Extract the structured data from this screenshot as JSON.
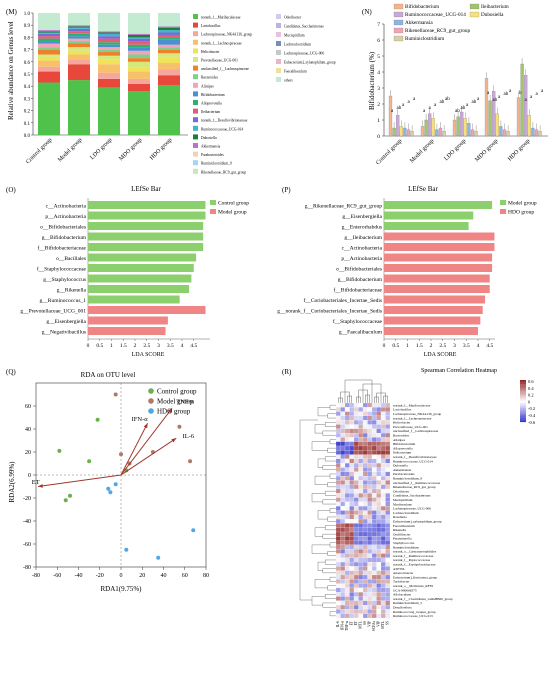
{
  "panels": {
    "M": {
      "letter": "(M)",
      "ylabel": "Relative abundance on Genus level",
      "groups": [
        "Control group",
        "Model group",
        "LDO group",
        "MDO group",
        "HDO group"
      ],
      "ticks": [
        "0.0",
        "0.1",
        "0.2",
        "0.3",
        "0.4",
        "0.5",
        "0.6",
        "0.7",
        "0.8",
        "0.9",
        "1.0"
      ],
      "legend_col1": [
        "norank_f__Muribaculaceae",
        "Lactobacillus",
        "Lachnospiraceae_NK4A136_group",
        "norank_f__Lachnospiraceae",
        "Helicobacter",
        "Prevotellaceae_UCG-001",
        "unclassified_f__Lachnospiraceae",
        "Bacteroides",
        "Alistipes",
        "Bifidobacterium",
        "Alloprevotella",
        "Ileibacterium",
        "norank_f__Desulfovibrionaceae",
        "Ruminococcaceae_UCG-014",
        "Dubosiella",
        "Akkermansia",
        "Parabacteroides",
        "Ruminiclostridium_9",
        "Rikenellaceae_RC9_gut_group"
      ],
      "legend_col2": [
        "Odoribacter",
        "Candidatus_Saccharimonas",
        "Mucispirillum",
        "Lachnoclostridium",
        "Lachnospiraceae_UCG-006",
        "Eubacterium]_xylanophilum_group",
        "Faecalibaculum",
        "others"
      ]
    },
    "N": {
      "letter": "(N)",
      "ylabel": "Bifidobacterium (%)",
      "ticks": [
        "0",
        "1",
        "2",
        "3",
        "4",
        "5",
        "6",
        "7"
      ],
      "groups": [
        "Control group",
        "Model group",
        "LDO group",
        "MDO group",
        "HDO group"
      ],
      "legend": [
        "Bifidobacterium",
        "Ileibacterium",
        "Ruminococcaceae_UCG-014",
        "Dubosiella",
        "Akkermansia",
        "Rikenellaceae_RC9_gut_group",
        "Ruminiclostridium"
      ],
      "letters": [
        [
          "a",
          "ab",
          "a",
          "a",
          "a"
        ],
        [
          "a",
          "a",
          "a",
          "ab",
          "ab"
        ],
        [
          "ab",
          "ab",
          "a",
          "ab",
          "a"
        ],
        [
          "a",
          "ab",
          "a",
          "ab",
          "a"
        ],
        [
          "b",
          "a",
          "a",
          "a",
          "a"
        ]
      ]
    },
    "O": {
      "letter": "(O)",
      "title": "LEfSe Bar",
      "xlabel": "LDA SCORE",
      "legend": [
        "Control group",
        "Model group"
      ],
      "ticks": [
        "0",
        "0.5",
        "1",
        "1.5",
        "2",
        "2.5",
        "3",
        "3.5",
        "4",
        "4.5"
      ],
      "labels": [
        "c__Actinobacteria",
        "p__Actinobacteria",
        "o__Bifidobacteriales",
        "g__Bifidobacterium",
        "f__Bifidobacteriaceae",
        "o__Bacillales",
        "f__Staphylococcaceae",
        "g__Staphylococcus",
        "g__Rikenella",
        "g__Ruminococcus_1",
        "g__Prevotellaceae_UCG_001",
        "g__Eisenbergiella",
        "g__Negativibacillus"
      ]
    },
    "P": {
      "letter": "(P)",
      "title": "LEfSe Bar",
      "xlabel": "LDA SCORE",
      "legend": [
        "Model group",
        "HDO group"
      ],
      "ticks": [
        "0",
        "0.5",
        "1",
        "1.5",
        "2",
        "2.5",
        "3",
        "3.5",
        "4",
        "4.5"
      ],
      "labels": [
        "g__Rikenellaceae_RC9_gut_group",
        "g__Eisenbergiella",
        "g__Enterorhabdus",
        "g__Ileibacterium",
        "c__Actinobacteria",
        "p__Actinobacteria",
        "o__Bifidobacteriales",
        "g__Bifidobacterium",
        "f__Bifidobacteriaceae",
        "f__Coriobacteriales_Incertae_Sedis",
        "g__norank_f__Coriobacteriales_Incertae_Sedis",
        "f__Staphylococcaceae",
        "g__Faecalibaculum"
      ]
    },
    "Q": {
      "letter": "(Q)",
      "title": "RDA on OTU level",
      "xlabel": "RDA1(9.75%)",
      "ylabel": "RDA2(6.99%)",
      "legend": [
        "Control group",
        "Model group",
        "HDO group"
      ],
      "xticks": [
        "-80",
        "-60",
        "-40",
        "-20",
        "0",
        "20",
        "40",
        "60",
        "80"
      ],
      "yticks": [
        "60",
        "40",
        "20",
        "0",
        "-20",
        "-40",
        "-60",
        "-80"
      ],
      "arrows": [
        "TNF-α",
        "IFN-α",
        "IL-6",
        "ET"
      ]
    },
    "R": {
      "letter": "(R)",
      "title": "Spearman Correlation Heatmap",
      "scale": [
        "0.6",
        "0.4",
        "0.2",
        "0",
        "-0.2",
        "-0.4",
        "-0.6"
      ],
      "columns": [
        "IL-6",
        "IFN-α",
        "TNF-α",
        "ET",
        "ET",
        "MTL",
        "SS",
        "VIP",
        "SCFAs",
        "VIP",
        "MTL",
        "SS"
      ],
      "rows": [
        "norank_f__Muribaculaceae",
        "Lactobacillus",
        "Lachnospiraceae_NK4A136_group",
        "norank_f__Lachnospiraceae",
        "Helicobacter",
        "Prevotellaceae_UCG-001",
        "unclassified_f__Lachnospiraceae",
        "Bacteroides",
        "Alistipes",
        "Bifidobacterium",
        "Alloprevotella",
        "Ileibacterium",
        "norank_f__Desulfovibrionaceae",
        "Ruminococcaceae_UCG-014",
        "Dubosiella",
        "Akkermansia",
        "Parabacteroides",
        "Ruminiclostridium_9",
        "unclassified_f__Ruminococcaceae",
        "Rikenellaceae_RC9_gut_group",
        "Odoribacter",
        "Candidatus_Saccharimonas",
        "Mucispirillum",
        "Muribaculum",
        "Lachnospiraceae_UCG-006",
        "Lachnoclostridium",
        "Roseburia",
        "Eubacterium]_xylanophilum_group",
        "Faecalibaculum",
        "Rikenella",
        "Oscillibacter",
        "Parasutterella",
        "Staphylococcus",
        "Ruminiclostridium",
        "norank_o__Gastranaerophilales",
        "norank_f__Ruminococcaceae",
        "norank_f__Peptococcaceae",
        "norank_f__Erysipelotrichaceae",
        "ASF356",
        "Anaerotruncus",
        "Eubacterium]_fissicatena_group",
        "Turicibacter",
        "norank_o__Mollicutes_RF39",
        "GCA-900066575",
        "Allobaculum",
        "norank_f__Clostridiales_vadinBB60_group",
        "Ruminiclostridium_5",
        "Desulfovibrio",
        "Ruminococcus]_torques_group",
        "Ruminococcaceae_UCG-013"
      ]
    }
  },
  "colors": {
    "green": "#8ccf6d",
    "salmon": "#f08585",
    "brown": "#b07a68",
    "blue": "#4ea8e6",
    "greenDot": "#6ab04c",
    "stack": [
      "#4ec24a",
      "#e8483b",
      "#f6a69c",
      "#f7c06a",
      "#f1e25c",
      "#d6e87c",
      "#ef7f2a",
      "#7dd18b",
      "#f4a3b9",
      "#4a8fd1",
      "#2cb36a",
      "#e35c7c",
      "#7a6bd2",
      "#40b7c9",
      "#1d7d3a",
      "#ba74c6",
      "#f2d4a8",
      "#a4d7ef",
      "#c9e7b8",
      "#d3cbe9",
      "#b6b6e3",
      "#e6c2de",
      "#7b8fb6",
      "#c8c8c8",
      "#e8b7c7",
      "#efe0a2",
      "#c3ebd2"
    ]
  }
}
